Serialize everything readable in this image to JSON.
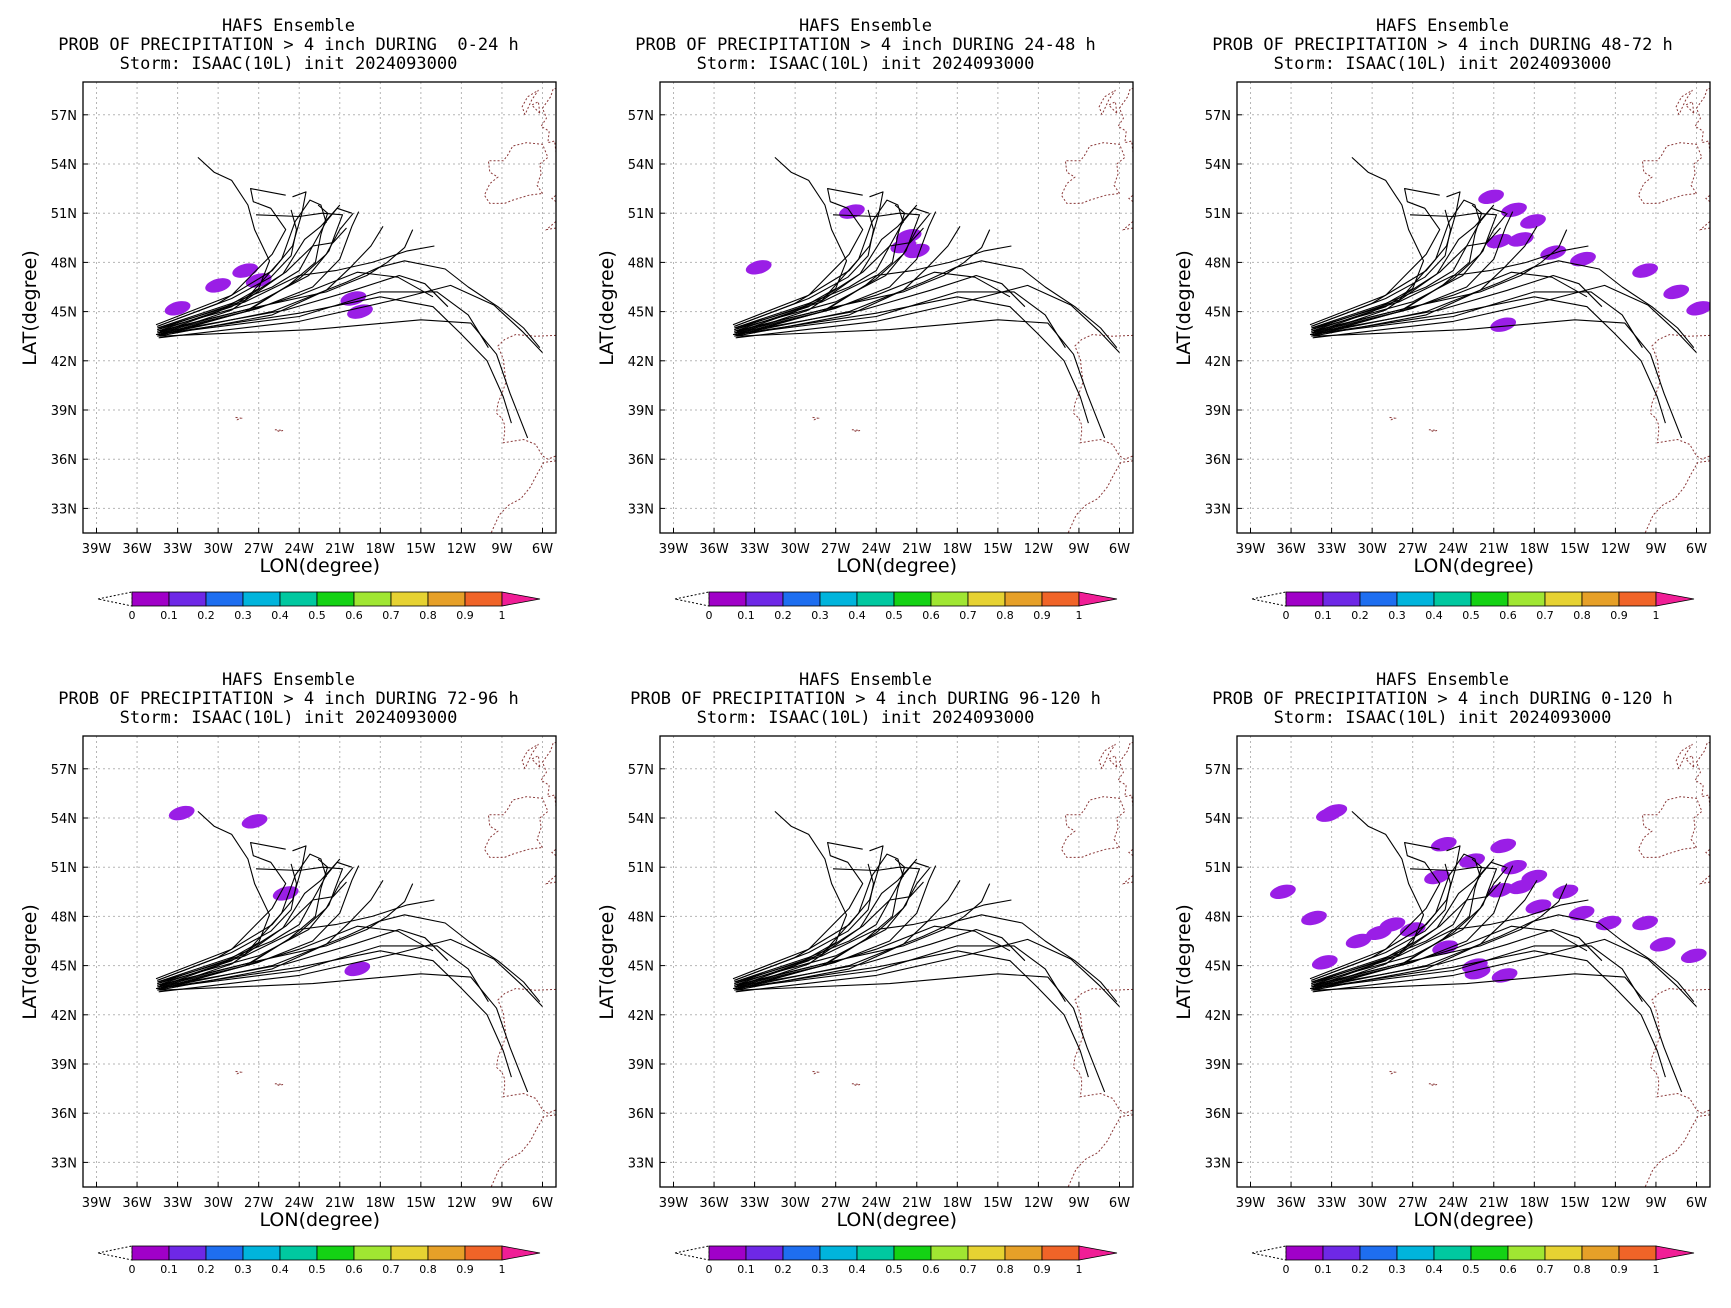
{
  "colors": {
    "track": "#000000",
    "coast": "#8b3a3a",
    "grid": "#b5b5b5",
    "precip": "#9a1ee6",
    "palette": [
      "#a000c8",
      "#6e28e6",
      "#1e6ef0",
      "#00b4dc",
      "#00c8a0",
      "#14d214",
      "#a0e632",
      "#e6d232",
      "#e6a028",
      "#f06428",
      "#f01e96"
    ]
  },
  "chart_data": [
    {
      "type": "map-probability",
      "title": "HAFS Ensemble",
      "subtitle": "PROB OF PRECIPITATION > 4 inch DURING  0-24 h",
      "storm": "Storm: ISAAC(10L) init 2024093000",
      "xlabel": "LON(degree)",
      "ylabel": "LAT(degree)",
      "xlim": [
        -40,
        -5
      ],
      "ylim": [
        31.5,
        59
      ],
      "xticks": [
        "39W",
        "36W",
        "33W",
        "30W",
        "27W",
        "24W",
        "21W",
        "18W",
        "15W",
        "12W",
        "9W",
        "6W"
      ],
      "yticks": [
        "33N",
        "36N",
        "39N",
        "42N",
        "45N",
        "48N",
        "51N",
        "54N",
        "57N"
      ],
      "grid": true,
      "colorbar": [
        "0",
        "0.1",
        "0.2",
        "0.3",
        "0.4",
        "0.5",
        "0.6",
        "0.7",
        "0.8",
        "0.9",
        "1"
      ],
      "precip_areas": [
        [
          -33,
          45.2
        ],
        [
          -30,
          46.6
        ],
        [
          -28,
          47.5
        ],
        [
          -27,
          46.9
        ],
        [
          -20,
          45.8
        ],
        [
          -19.5,
          45.0
        ]
      ]
    },
    {
      "type": "map-probability",
      "title": "HAFS Ensemble",
      "subtitle": "PROB OF PRECIPITATION > 4 inch DURING 24-48 h",
      "storm": "Storm: ISAAC(10L) init 2024093000",
      "xlabel": "LON(degree)",
      "ylabel": "LAT(degree)",
      "xlim": [
        -40,
        -5
      ],
      "ylim": [
        31.5,
        59
      ],
      "xticks": [
        "39W",
        "36W",
        "33W",
        "30W",
        "27W",
        "24W",
        "21W",
        "18W",
        "15W",
        "12W",
        "9W",
        "6W"
      ],
      "yticks": [
        "33N",
        "36N",
        "39N",
        "42N",
        "45N",
        "48N",
        "51N",
        "54N",
        "57N"
      ],
      "grid": true,
      "colorbar": [
        "0",
        "0.1",
        "0.2",
        "0.3",
        "0.4",
        "0.5",
        "0.6",
        "0.7",
        "0.8",
        "0.9",
        "1"
      ],
      "precip_areas": [
        [
          -32.7,
          47.7
        ],
        [
          -25.8,
          51.1
        ],
        [
          -21.6,
          49.6
        ],
        [
          -22.0,
          49.0
        ],
        [
          -21.0,
          48.7
        ]
      ]
    },
    {
      "type": "map-probability",
      "title": "HAFS Ensemble",
      "subtitle": "PROB OF PRECIPITATION > 4 inch DURING 48-72 h",
      "storm": "Storm: ISAAC(10L) init 2024093000",
      "xlabel": "LON(degree)",
      "ylabel": "LAT(degree)",
      "xlim": [
        -40,
        -5
      ],
      "ylim": [
        31.5,
        59
      ],
      "xticks": [
        "39W",
        "36W",
        "33W",
        "30W",
        "27W",
        "24W",
        "21W",
        "18W",
        "15W",
        "12W",
        "9W",
        "6W"
      ],
      "yticks": [
        "33N",
        "36N",
        "39N",
        "42N",
        "45N",
        "48N",
        "51N",
        "54N",
        "57N"
      ],
      "grid": true,
      "colorbar": [
        "0",
        "0.1",
        "0.2",
        "0.3",
        "0.4",
        "0.5",
        "0.6",
        "0.7",
        "0.8",
        "0.9",
        "1"
      ],
      "precip_areas": [
        [
          -21.2,
          52.0
        ],
        [
          -19.5,
          51.2
        ],
        [
          -20.6,
          49.3
        ],
        [
          -19.0,
          49.4
        ],
        [
          -18.1,
          50.5
        ],
        [
          -16.6,
          48.6
        ],
        [
          -14.4,
          48.2
        ],
        [
          -7.5,
          46.2
        ],
        [
          -5.8,
          45.2
        ],
        [
          -9.8,
          47.5
        ],
        [
          -20.3,
          44.2
        ]
      ]
    },
    {
      "type": "map-probability",
      "title": "HAFS Ensemble",
      "subtitle": "PROB OF PRECIPITATION > 4 inch DURING 72-96 h",
      "storm": "Storm: ISAAC(10L) init 2024093000",
      "xlabel": "LON(degree)",
      "ylabel": "LAT(degree)",
      "xlim": [
        -40,
        -5
      ],
      "ylim": [
        31.5,
        59
      ],
      "xticks": [
        "39W",
        "36W",
        "33W",
        "30W",
        "27W",
        "24W",
        "21W",
        "18W",
        "15W",
        "12W",
        "9W",
        "6W"
      ],
      "yticks": [
        "33N",
        "36N",
        "39N",
        "42N",
        "45N",
        "48N",
        "51N",
        "54N",
        "57N"
      ],
      "grid": true,
      "colorbar": [
        "0",
        "0.1",
        "0.2",
        "0.3",
        "0.4",
        "0.5",
        "0.6",
        "0.7",
        "0.8",
        "0.9",
        "1"
      ],
      "precip_areas": [
        [
          -32.7,
          54.3
        ],
        [
          -27.3,
          53.8
        ],
        [
          -25.0,
          49.4
        ],
        [
          -19.7,
          44.8
        ]
      ]
    },
    {
      "type": "map-probability",
      "title": "HAFS Ensemble",
      "subtitle": "PROB OF PRECIPITATION > 4 inch DURING 96-120 h",
      "storm": "Storm: ISAAC(10L) init 2024093000",
      "xlabel": "LON(degree)",
      "ylabel": "LAT(degree)",
      "xlim": [
        -40,
        -5
      ],
      "ylim": [
        31.5,
        59
      ],
      "xticks": [
        "39W",
        "36W",
        "33W",
        "30W",
        "27W",
        "24W",
        "21W",
        "18W",
        "15W",
        "12W",
        "9W",
        "6W"
      ],
      "yticks": [
        "33N",
        "36N",
        "39N",
        "42N",
        "45N",
        "48N",
        "51N",
        "54N",
        "57N"
      ],
      "grid": true,
      "colorbar": [
        "0",
        "0.1",
        "0.2",
        "0.3",
        "0.4",
        "0.5",
        "0.6",
        "0.7",
        "0.8",
        "0.9",
        "1"
      ],
      "precip_areas": []
    },
    {
      "type": "map-probability",
      "title": "HAFS Ensemble",
      "subtitle": "PROB OF PRECIPITATION > 4 inch DURING 0-120 h",
      "storm": "Storm: ISAAC(10L) init 2024093000",
      "xlabel": "LON(degree)",
      "ylabel": "LAT(degree)",
      "xlim": [
        -40,
        -5
      ],
      "ylim": [
        31.5,
        59
      ],
      "xticks": [
        "39W",
        "36W",
        "33W",
        "30W",
        "27W",
        "24W",
        "21W",
        "18W",
        "15W",
        "12W",
        "9W",
        "6W"
      ],
      "yticks": [
        "33N",
        "36N",
        "39N",
        "42N",
        "45N",
        "48N",
        "51N",
        "54N",
        "57N"
      ],
      "grid": true,
      "colorbar": [
        "0",
        "0.1",
        "0.2",
        "0.3",
        "0.4",
        "0.5",
        "0.6",
        "0.7",
        "0.8",
        "0.9",
        "1"
      ],
      "precip_areas": [
        [
          -32.8,
          54.4
        ],
        [
          -33.2,
          54.2
        ],
        [
          -36.6,
          49.5
        ],
        [
          -34.3,
          47.9
        ],
        [
          -33.5,
          45.2
        ],
        [
          -31.0,
          46.5
        ],
        [
          -29.5,
          47.0
        ],
        [
          -28.5,
          47.5
        ],
        [
          -27.0,
          47.2
        ],
        [
          -24.7,
          52.4
        ],
        [
          -25.2,
          50.4
        ],
        [
          -22.6,
          51.4
        ],
        [
          -20.3,
          52.3
        ],
        [
          -19.5,
          51.0
        ],
        [
          -20.5,
          49.6
        ],
        [
          -19.0,
          49.8
        ],
        [
          -18.0,
          50.4
        ],
        [
          -17.7,
          48.6
        ],
        [
          -15.7,
          49.5
        ],
        [
          -14.5,
          48.2
        ],
        [
          -12.5,
          47.6
        ],
        [
          -8.5,
          46.3
        ],
        [
          -6.2,
          45.6
        ],
        [
          -9.8,
          47.6
        ],
        [
          -20.2,
          44.4
        ],
        [
          -22.4,
          45.0
        ],
        [
          -24.6,
          46.1
        ],
        [
          -22.2,
          44.6
        ]
      ]
    }
  ]
}
